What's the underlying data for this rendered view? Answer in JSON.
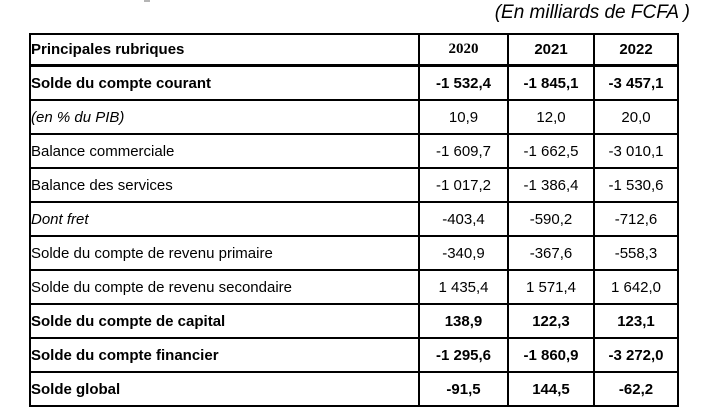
{
  "caption": "(En milliards de FCFA )",
  "table": {
    "header": {
      "label": "Principales rubriques",
      "years": [
        "2020",
        "2021",
        "2022"
      ]
    },
    "rows": [
      {
        "label": "Solde du compte courant",
        "values": [
          "-1 532,4",
          "-1 845,1",
          "-3 457,1"
        ]
      },
      {
        "label": "(en % du PIB)",
        "values": [
          "10,9",
          "12,0",
          "20,0"
        ]
      },
      {
        "label": "Balance commerciale",
        "values": [
          "-1 609,7",
          "-1 662,5",
          "-3 010,1"
        ]
      },
      {
        "label": "Balance des services",
        "values": [
          "-1 017,2",
          "-1 386,4",
          "-1 530,6"
        ]
      },
      {
        "label": "Dont fret",
        "values": [
          "-403,4",
          "-590,2",
          "-712,6"
        ]
      },
      {
        "label": "Solde du compte de revenu primaire",
        "values": [
          "-340,9",
          "-367,6",
          "-558,3"
        ]
      },
      {
        "label": "Solde du compte de revenu secondaire",
        "values": [
          "1 435,4",
          "1 571,4",
          "1 642,0"
        ]
      },
      {
        "label": "Solde du compte de capital",
        "values": [
          "138,9",
          "122,3",
          "123,1"
        ]
      },
      {
        "label": "Solde du compte financier",
        "values": [
          "-1 295,6",
          "-1 860,9",
          "-3 272,0"
        ]
      },
      {
        "label": "Solde global",
        "values": [
          "-91,5",
          "144,5",
          "-62,2"
        ]
      }
    ]
  }
}
